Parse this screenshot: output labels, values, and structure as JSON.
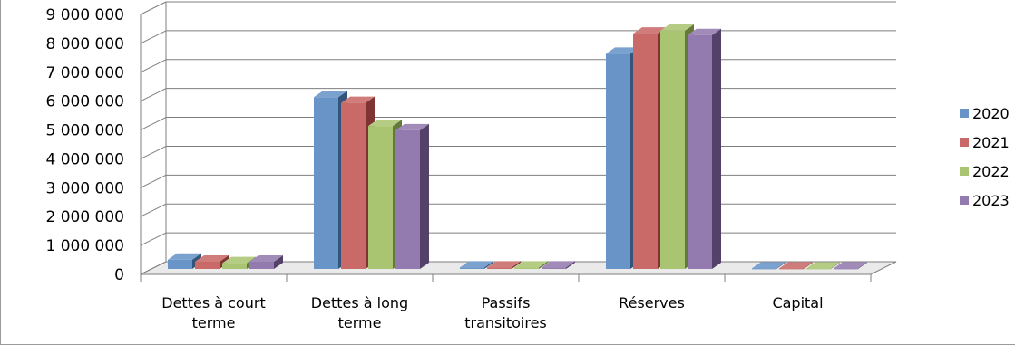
{
  "chart_data": {
    "type": "bar",
    "categories": [
      [
        "Dettes à court",
        "terme"
      ],
      [
        "Dettes à long",
        "terme"
      ],
      [
        "Passifs",
        "transitoires"
      ],
      [
        "Réserves"
      ],
      [
        "Capital"
      ]
    ],
    "series": [
      {
        "name": "2020",
        "color": "#4f81bd",
        "values": [
          320000,
          5950000,
          50000,
          7450000,
          20000
        ]
      },
      {
        "name": "2021",
        "color": "#c0504d",
        "values": [
          250000,
          5750000,
          50000,
          8150000,
          20000
        ]
      },
      {
        "name": "2022",
        "color": "#9bbb59",
        "values": [
          200000,
          4950000,
          50000,
          8250000,
          20000
        ]
      },
      {
        "name": "2023",
        "color": "#8064a2",
        "values": [
          250000,
          4800000,
          50000,
          8100000,
          20000
        ]
      }
    ],
    "y_ticks": [
      "0",
      "1 000 000",
      "2 000 000",
      "3 000 000",
      "4 000 000",
      "5 000 000",
      "6 000 000",
      "7 000 000",
      "8 000 000",
      "9 000 000"
    ],
    "ylim": [
      0,
      9000000
    ],
    "grid": true,
    "legend_position": "right",
    "style": "3d-clustered-column"
  }
}
